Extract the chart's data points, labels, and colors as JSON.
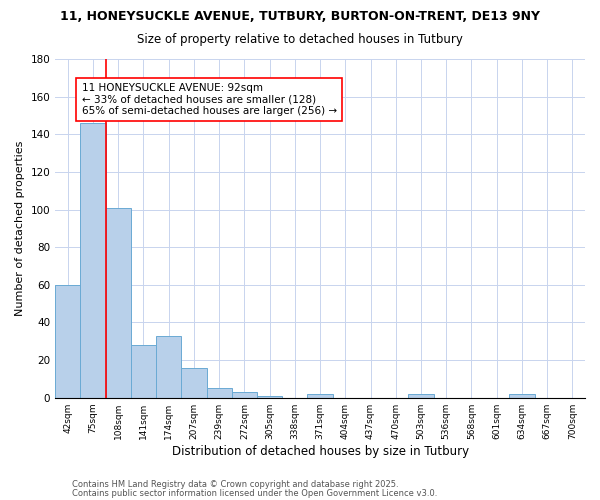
{
  "title1": "11, HONEYSUCKLE AVENUE, TUTBURY, BURTON-ON-TRENT, DE13 9NY",
  "title2": "Size of property relative to detached houses in Tutbury",
  "xlabel": "Distribution of detached houses by size in Tutbury",
  "ylabel": "Number of detached properties",
  "categories": [
    "42sqm",
    "75sqm",
    "108sqm",
    "141sqm",
    "174sqm",
    "207sqm",
    "239sqm",
    "272sqm",
    "305sqm",
    "338sqm",
    "371sqm",
    "404sqm",
    "437sqm",
    "470sqm",
    "503sqm",
    "536sqm",
    "568sqm",
    "601sqm",
    "634sqm",
    "667sqm",
    "700sqm"
  ],
  "values": [
    60,
    146,
    101,
    28,
    33,
    16,
    5,
    3,
    1,
    0,
    2,
    0,
    0,
    0,
    2,
    0,
    0,
    0,
    2,
    0,
    0
  ],
  "bar_color": "#b8d0ea",
  "bar_edge_color": "#6aaad4",
  "grid_color": "#c8d4ee",
  "red_line_x": 1.5,
  "annotation_title": "11 HONEYSUCKLE AVENUE: 92sqm",
  "annotation_line1": "← 33% of detached houses are smaller (128)",
  "annotation_line2": "65% of semi-detached houses are larger (256) →",
  "ylim": [
    0,
    180
  ],
  "yticks": [
    0,
    20,
    40,
    60,
    80,
    100,
    120,
    140,
    160,
    180
  ],
  "footer1": "Contains HM Land Registry data © Crown copyright and database right 2025.",
  "footer2": "Contains public sector information licensed under the Open Government Licence v3.0.",
  "bg_color": "#ffffff"
}
